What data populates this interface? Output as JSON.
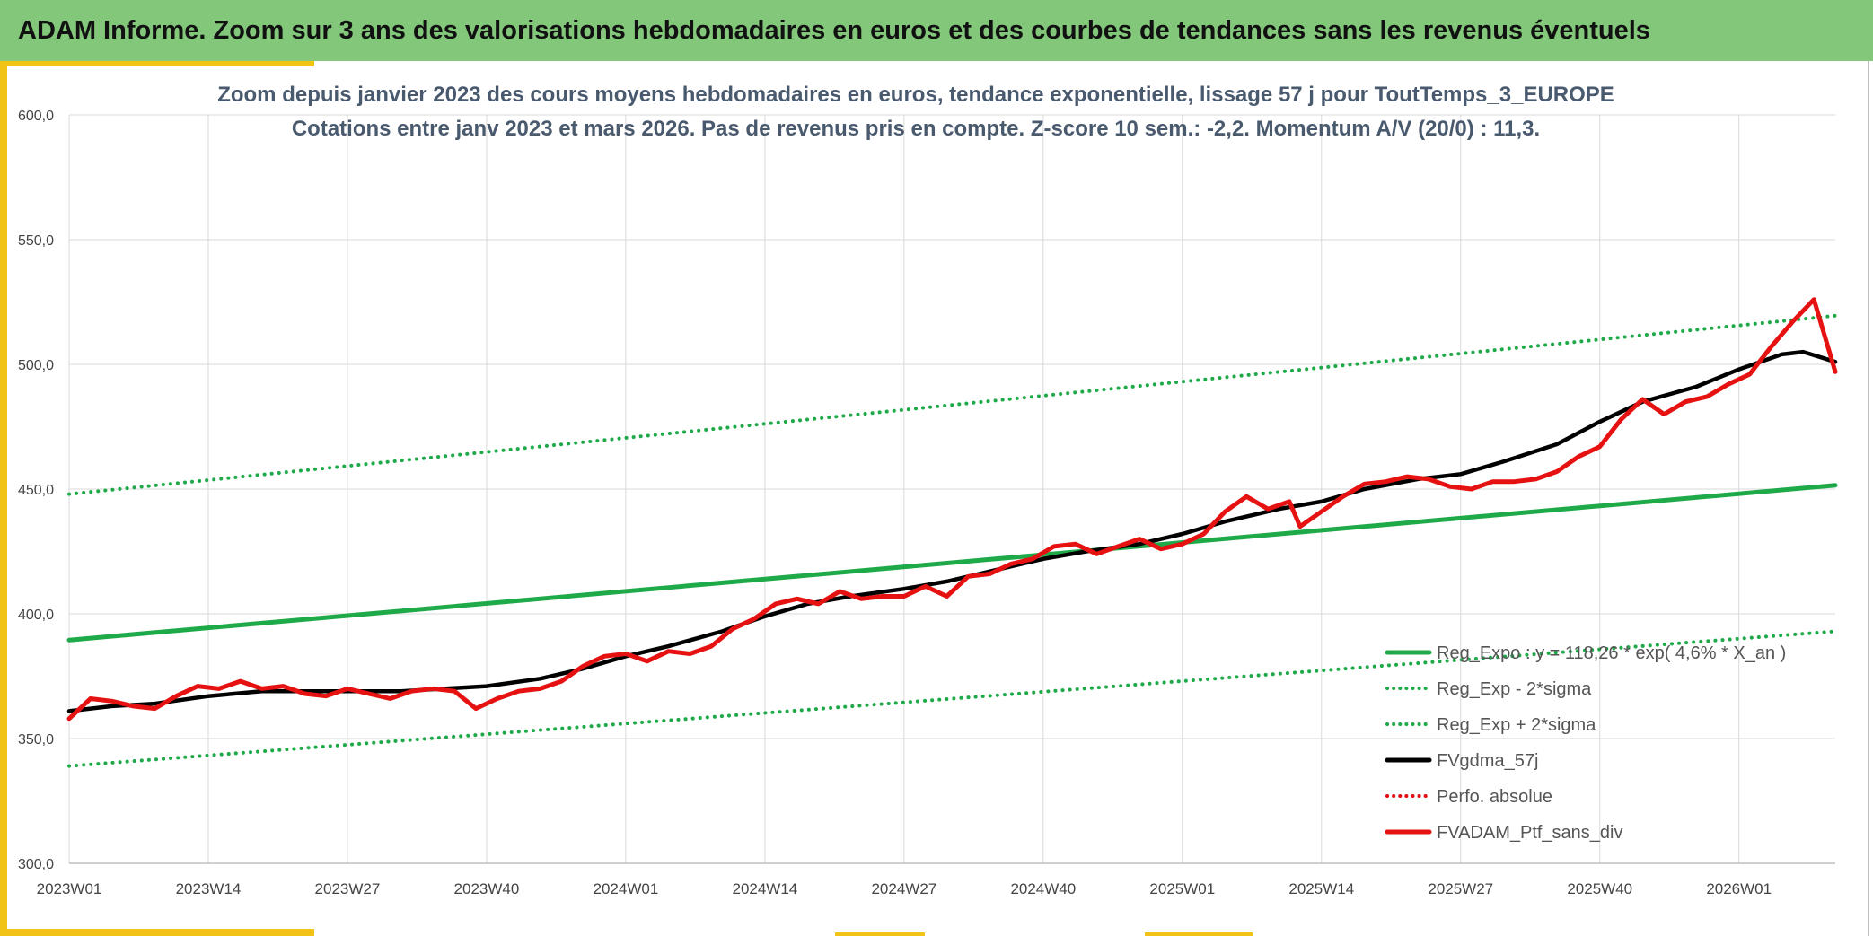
{
  "header": {
    "title": "ADAM Informe. Zoom sur 3 ans des valorisations hebdomadaires en euros et des courbes de tendances sans les revenus éventuels"
  },
  "chart_data": {
    "type": "line",
    "title": "Zoom depuis janvier 2023 des cours moyens hebdomadaires en euros, tendance exponentielle, lissage 57 j pour ToutTemps_3_EUROPE",
    "subtitle": "Cotations entre janv 2023 et mars 2026. Pas de revenus pris en compte. Z-score 10 sem.: -2,2. Momentum A/V (20/0) : 11,3.",
    "xlabel": "",
    "ylabel": "",
    "ylim": [
      300,
      600
    ],
    "yticks": [
      "300,0",
      "350,0",
      "400,0",
      "450,0",
      "500,0",
      "550,0",
      "600,0"
    ],
    "xticks": [
      "2023W01",
      "2023W14",
      "2023W27",
      "2023W40",
      "2024W01",
      "2024W14",
      "2024W27",
      "2024W40",
      "2025W01",
      "2025W14",
      "2025W27",
      "2025W40",
      "2026W01"
    ],
    "xtick_index": [
      0,
      13,
      26,
      39,
      52,
      65,
      78,
      91,
      104,
      117,
      130,
      143,
      156
    ],
    "n_weeks": 166,
    "grid": true,
    "legend_position": "bottom-right",
    "series": [
      {
        "name": "Reg_Expo : y = 118,26 * exp( 4,6% * X_an )",
        "color": "#1faa4a",
        "style": "solid",
        "x": [
          0,
          165
        ],
        "y": [
          389.5,
          451.5
        ]
      },
      {
        "name": "Reg_Exp - 2*sigma",
        "color": "#1faa4a",
        "style": "dotted",
        "x": [
          0,
          165
        ],
        "y": [
          339,
          393
        ]
      },
      {
        "name": "Reg_Exp + 2*sigma",
        "color": "#1faa4a",
        "style": "dotted",
        "x": [
          0,
          165
        ],
        "y": [
          448,
          519.5
        ]
      },
      {
        "name": "FVgdma_57j",
        "color": "#000000",
        "style": "solid",
        "x": [
          0,
          4,
          8,
          13,
          18,
          22,
          26,
          31,
          35,
          39,
          44,
          48,
          52,
          56,
          61,
          65,
          69,
          73,
          78,
          82,
          87,
          91,
          95,
          100,
          104,
          108,
          113,
          117,
          121,
          126,
          130,
          134,
          139,
          143,
          147,
          152,
          156,
          160,
          162,
          165
        ],
        "y": [
          361,
          363,
          364,
          367,
          369,
          369,
          369,
          369,
          370,
          371,
          374,
          378,
          383,
          387,
          393,
          399,
          404,
          407,
          410,
          413,
          418,
          422,
          425,
          428,
          432,
          437,
          442,
          445,
          450,
          454,
          456,
          461,
          468,
          477,
          485,
          491,
          498,
          504,
          505,
          501
        ]
      },
      {
        "name": "Perfo. absolue",
        "color": "#e01010",
        "style": "dotted",
        "x": [],
        "y": []
      },
      {
        "name": "FVADAM_Ptf_sans_div",
        "color": "#e61212",
        "style": "solid",
        "x": [
          0,
          2,
          4,
          6,
          8,
          10,
          12,
          14,
          16,
          18,
          20,
          22,
          24,
          26,
          28,
          30,
          32,
          34,
          36,
          38,
          40,
          42,
          44,
          46,
          48,
          50,
          52,
          54,
          56,
          58,
          60,
          62,
          64,
          66,
          68,
          70,
          72,
          74,
          76,
          78,
          80,
          82,
          84,
          86,
          88,
          90,
          92,
          94,
          96,
          98,
          100,
          102,
          104,
          106,
          108,
          110,
          112,
          114,
          115,
          117,
          119,
          121,
          123,
          125,
          127,
          129,
          131,
          133,
          135,
          137,
          139,
          141,
          143,
          145,
          147,
          149,
          151,
          153,
          155,
          157,
          159,
          161,
          163,
          165
        ],
        "y": [
          358,
          366,
          365,
          363,
          362,
          367,
          371,
          370,
          373,
          370,
          371,
          368,
          367,
          370,
          368,
          366,
          369,
          370,
          369,
          362,
          366,
          369,
          370,
          373,
          379,
          383,
          384,
          381,
          385,
          384,
          387,
          394,
          398,
          404,
          406,
          404,
          409,
          406,
          407,
          407,
          411,
          407,
          415,
          416,
          420,
          422,
          427,
          428,
          424,
          427,
          430,
          426,
          428,
          432,
          441,
          447,
          442,
          445,
          435,
          441,
          447,
          452,
          453,
          455,
          454,
          451,
          450,
          453,
          453,
          454,
          457,
          463,
          467,
          478,
          486,
          480,
          485,
          487,
          492,
          496,
          507,
          517,
          526,
          497
        ]
      }
    ]
  }
}
